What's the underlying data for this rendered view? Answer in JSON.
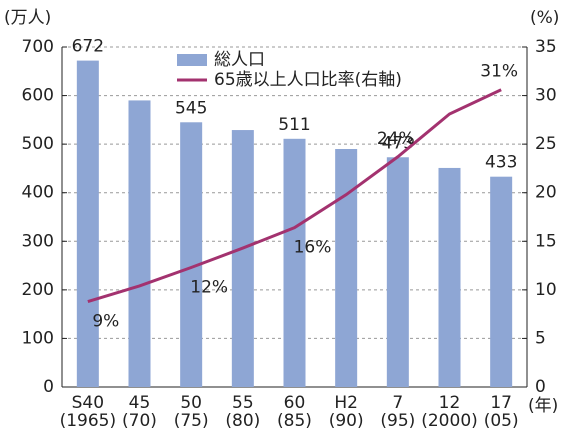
{
  "chart_data": {
    "type": "bar",
    "y_unit_label": "(万人)",
    "y2_unit_label": "(%)",
    "x_unit_label": "(年)",
    "categories": [
      "S40",
      "45",
      "50",
      "55",
      "60",
      "H2",
      "7",
      "12",
      "17"
    ],
    "category_years": [
      "(1965)",
      "(70)",
      "(75)",
      "(80)",
      "(85)",
      "(90)",
      "(95)",
      "(2000)",
      "(05)"
    ],
    "series": [
      {
        "name": "総人口",
        "type": "bar",
        "color": "#8ea6d4",
        "values": [
          672,
          590,
          545,
          529,
          511,
          490,
          473,
          451,
          433
        ],
        "value_labels": [
          "672",
          null,
          "545",
          null,
          "511",
          null,
          "473",
          null,
          "433"
        ]
      },
      {
        "name": "65歳以上人口比率(右軸)",
        "type": "line",
        "axis": "y2",
        "color": "#a3326f",
        "values": [
          8.8,
          10.4,
          12.3,
          14.3,
          16.4,
          19.8,
          23.7,
          28.1,
          30.6
        ],
        "value_labels": [
          "9%",
          null,
          "12%",
          null,
          "16%",
          null,
          "24%",
          null,
          "31%"
        ]
      }
    ],
    "ylim": [
      0,
      700
    ],
    "yticks": [
      0,
      100,
      200,
      300,
      400,
      500,
      600,
      700
    ],
    "y2lim": [
      0,
      35
    ],
    "y2ticks": [
      0,
      5,
      10,
      15,
      20,
      25,
      30,
      35
    ],
    "grid": true
  }
}
